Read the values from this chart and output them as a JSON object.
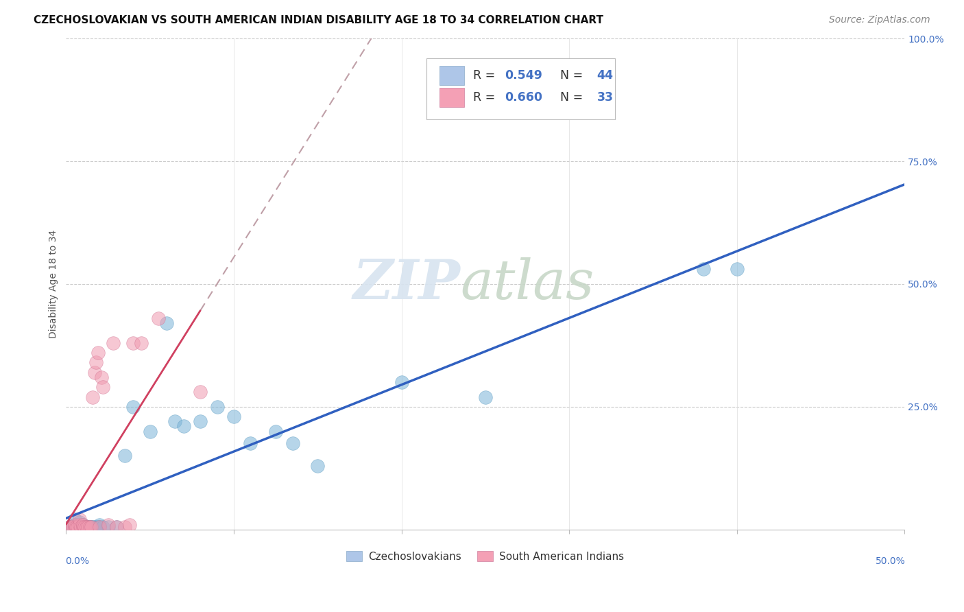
{
  "title": "CZECHOSLOVAKIAN VS SOUTH AMERICAN INDIAN DISABILITY AGE 18 TO 34 CORRELATION CHART",
  "source": "Source: ZipAtlas.com",
  "ylabel": "Disability Age 18 to 34",
  "watermark_zip": "ZIP",
  "watermark_atlas": "atlas",
  "xlim": [
    0.0,
    0.5
  ],
  "ylim": [
    0.0,
    1.0
  ],
  "czech_color": "#7ab4d8",
  "czech_edge_color": "#5a9abf",
  "sai_color": "#f09ab0",
  "sai_edge_color": "#d07090",
  "czech_line_color": "#3060c0",
  "sai_line_color": "#d04060",
  "background_color": "#ffffff",
  "title_fontsize": 11,
  "source_fontsize": 10,
  "axis_label_fontsize": 10,
  "tick_fontsize": 10
}
